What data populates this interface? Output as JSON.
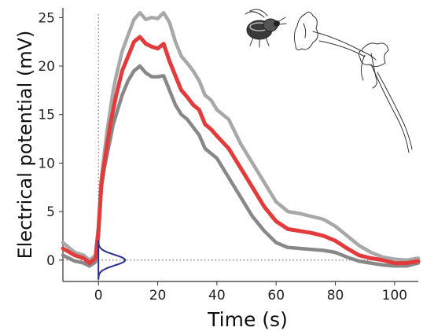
{
  "chart_data": {
    "type": "line",
    "xlabel": "Time (s)",
    "ylabel": "Electrical potential (mV)",
    "xlim": [
      -12,
      108
    ],
    "ylim": [
      -2.2,
      26
    ],
    "xticks": [
      0,
      20,
      40,
      60,
      80,
      100
    ],
    "yticks": [
      0,
      5,
      10,
      15,
      20,
      25
    ],
    "grid": false,
    "stimulus_marker_x": 0,
    "baseline_y": 0,
    "series": [
      {
        "role": "upper-bound",
        "color": "#a8a8a8",
        "x": [
          -12,
          -8,
          -5,
          -3,
          -1,
          0,
          1,
          2,
          3,
          4,
          5,
          6,
          8,
          10,
          12,
          14,
          16,
          18,
          20,
          22,
          24,
          26,
          28,
          30,
          32,
          34,
          36,
          38,
          40,
          44,
          48,
          52,
          56,
          60,
          64,
          68,
          72,
          76,
          80,
          84,
          88,
          92,
          96,
          100,
          104,
          108
        ],
        "y": [
          1.8,
          0.8,
          0.5,
          0.0,
          0.5,
          3.5,
          8.5,
          11.0,
          13.5,
          15.5,
          17.5,
          19.0,
          21.5,
          23.2,
          24.8,
          25.5,
          24.8,
          25.0,
          24.9,
          25.5,
          24.5,
          22.5,
          21.0,
          20.3,
          19.5,
          18.5,
          17.0,
          16.5,
          15.5,
          14.5,
          12.0,
          10.0,
          8.0,
          6.0,
          5.0,
          4.8,
          4.5,
          4.2,
          3.5,
          2.5,
          1.5,
          0.8,
          0.3,
          0.1,
          0.0,
          0.2
        ]
      },
      {
        "role": "mean",
        "color": "#e23b3b",
        "x": [
          -12,
          -8,
          -5,
          -3,
          -1,
          0,
          1,
          2,
          3,
          4,
          5,
          6,
          8,
          10,
          12,
          14,
          16,
          18,
          20,
          22,
          24,
          26,
          28,
          30,
          32,
          34,
          36,
          38,
          40,
          44,
          48,
          52,
          56,
          60,
          64,
          68,
          72,
          76,
          80,
          84,
          88,
          92,
          96,
          100,
          104,
          108
        ],
        "y": [
          1.2,
          0.5,
          0.2,
          -0.3,
          0.2,
          3.0,
          8.0,
          10.0,
          12.0,
          14.0,
          15.5,
          17.0,
          19.5,
          21.0,
          22.5,
          23.0,
          22.3,
          22.0,
          21.8,
          22.3,
          20.5,
          19.0,
          17.5,
          16.8,
          16.0,
          15.5,
          14.0,
          13.5,
          12.8,
          11.5,
          9.5,
          7.5,
          5.5,
          4.0,
          3.2,
          3.0,
          2.8,
          2.5,
          2.0,
          1.2,
          0.5,
          0.2,
          0.0,
          -0.3,
          -0.3,
          -0.1
        ]
      },
      {
        "role": "lower-bound",
        "color": "#888888",
        "x": [
          -12,
          -8,
          -5,
          -3,
          -1,
          0,
          1,
          2,
          3,
          4,
          5,
          6,
          8,
          10,
          12,
          14,
          16,
          18,
          20,
          22,
          24,
          26,
          28,
          30,
          32,
          34,
          36,
          38,
          40,
          44,
          48,
          52,
          56,
          60,
          64,
          68,
          72,
          76,
          80,
          84,
          88,
          92,
          96,
          100,
          104,
          108
        ],
        "y": [
          0.5,
          -0.1,
          -0.3,
          -0.6,
          -0.2,
          2.5,
          7.5,
          9.5,
          11.0,
          12.5,
          14.0,
          15.0,
          17.0,
          18.5,
          19.5,
          20.0,
          19.3,
          18.9,
          18.9,
          19.0,
          17.5,
          16.0,
          15.0,
          14.5,
          13.7,
          12.9,
          11.5,
          11.0,
          10.5,
          8.5,
          6.5,
          4.5,
          3.0,
          1.8,
          1.3,
          1.2,
          1.1,
          1.0,
          0.8,
          0.3,
          -0.1,
          -0.3,
          -0.5,
          -0.6,
          -0.6,
          -0.3
        ]
      }
    ],
    "stimulus_density": {
      "color": "#2b2d8f",
      "peak_x": 0.5,
      "peak_height": 9,
      "center_y": 0,
      "spread": 0.55
    },
    "illustrations": [
      "bumblebee-drawing",
      "petunia-flower-drawing"
    ]
  }
}
